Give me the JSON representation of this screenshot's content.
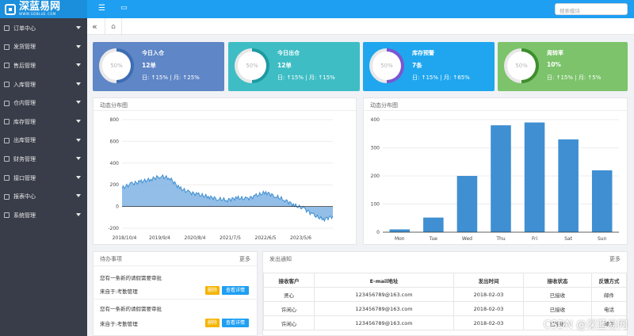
{
  "logo": {
    "text": "深蓝易网",
    "sub": "WWW.GDBLUE.COM"
  },
  "search": {
    "placeholder": "搜索模块"
  },
  "sidebar": {
    "items": [
      {
        "label": "订单中心"
      },
      {
        "label": "发货管理"
      },
      {
        "label": "售后管理"
      },
      {
        "label": "入库管理"
      },
      {
        "label": "仓内管理"
      },
      {
        "label": "库存管理"
      },
      {
        "label": "出库管理"
      },
      {
        "label": "财务管理"
      },
      {
        "label": "接口管理"
      },
      {
        "label": "报表中心"
      },
      {
        "label": "系统管理"
      }
    ]
  },
  "cards": [
    {
      "title": "今日入仓",
      "value": "12单",
      "ring": "50%",
      "stat1": "日: ↑15%",
      "stat2": "月: ↑25%",
      "color": "#5f86c6",
      "ring_color": "#3d6db3"
    },
    {
      "title": "今日出仓",
      "value": "12单",
      "ring": "50%",
      "stat1": "日: ↑15%",
      "stat2": "月: ↑15%",
      "color": "#3fbdc5",
      "ring_color": "#1e9aa3"
    },
    {
      "title": "库存预警",
      "value": "7条",
      "ring": "50%",
      "stat1": "日: ↑15%",
      "stat2": "月: ↑65%",
      "color": "#1fa6ee",
      "ring_color": "#7a57d1"
    },
    {
      "title": "周转率",
      "value": "10%",
      "ring": "50%",
      "stat1": "日: ↑15%",
      "stat2": "月: ↑5%",
      "color": "#7cc36b",
      "ring_color": "#3f8e2e"
    }
  ],
  "panels": {
    "left_chart_title": "动态分布图",
    "right_chart_title": "动态分布图",
    "todo_title": "待办事项",
    "todo_more": "更多",
    "notice_title": "发出通知",
    "notice_more": "更多"
  },
  "todo": [
    {
      "text": "您有一条新的请假需要审批",
      "from": "来自于:考勤管理",
      "delete": "删除",
      "view": "查看详情"
    },
    {
      "text": "您有一条新的请假需要审批",
      "from": "来自于:考勤管理",
      "delete": "删除",
      "view": "查看详情"
    }
  ],
  "notice_table": {
    "headers": [
      "接收客户",
      "E-mail地址",
      "发出时间",
      "接收状态",
      "反馈方式"
    ],
    "rows": [
      [
        "贤心",
        "123456789@163.com",
        "2018-02-03",
        "已接收",
        "邮件"
      ],
      [
        "许闲心",
        "123456789@163.com",
        "2018-02-03",
        "已接收",
        "电话"
      ],
      [
        "许闲心",
        "123456789@163.com",
        "2018-02-03",
        "已接收",
        "邮件"
      ]
    ]
  },
  "watermark": "CSDN @深蓝易网",
  "chart_data": [
    {
      "type": "area",
      "title": "动态分布图",
      "x_ticks": [
        "2018/10/4",
        "2019/9/4",
        "2020/8/4",
        "2021/7/5",
        "2022/6/5",
        "2023/5/6"
      ],
      "ylim": [
        -200,
        800
      ],
      "y_ticks": [
        -200,
        0,
        200,
        400,
        600,
        800
      ],
      "x": [
        "2018/10/4",
        "2019/1/4",
        "2019/4/4",
        "2019/7/4",
        "2019/9/4",
        "2019/11/4",
        "2020/2/4",
        "2020/5/4",
        "2020/8/4",
        "2020/11/4",
        "2021/2/4",
        "2021/5/4",
        "2021/7/5",
        "2021/10/5",
        "2022/1/5",
        "2022/4/5",
        "2022/6/5",
        "2022/9/5",
        "2022/12/5",
        "2023/3/5",
        "2023/5/6",
        "2023/8/6",
        "2023/11/6"
      ],
      "values": [
        170,
        210,
        230,
        250,
        280,
        260,
        170,
        130,
        110,
        90,
        70,
        60,
        80,
        70,
        100,
        130,
        95,
        60,
        10,
        -20,
        -80,
        -120,
        -90
      ],
      "grid": true,
      "color": "#3f8fd2"
    },
    {
      "type": "bar",
      "title": "动态分布图",
      "categories": [
        "Mon",
        "Tue",
        "Wed",
        "Thu",
        "Fri",
        "Sat",
        "Sun"
      ],
      "values": [
        10,
        52,
        200,
        380,
        390,
        330,
        220
      ],
      "ylim": [
        0,
        400
      ],
      "y_ticks": [
        0,
        100,
        200,
        300,
        400
      ],
      "grid": true,
      "color": "#3f8fd2"
    }
  ]
}
